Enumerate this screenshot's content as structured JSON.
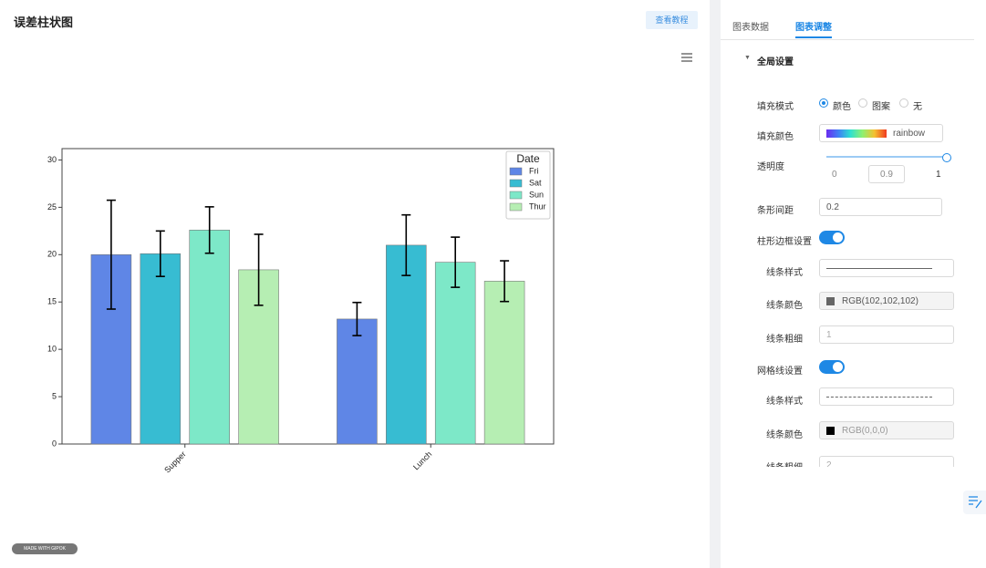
{
  "header": {
    "title": "误差柱状图",
    "button": "查看教程"
  },
  "tabs": [
    "图表数据",
    "图表调整"
  ],
  "section": "全局设置",
  "settings": {
    "fill_mode": {
      "label": "填充模式",
      "options": [
        "颜色",
        "图案",
        "无"
      ]
    },
    "fill_color": {
      "label": "填充颜色",
      "value": "rainbow"
    },
    "opacity": {
      "label": "透明度",
      "min": "0",
      "value": "0.9",
      "max": "1"
    },
    "bar_gap": {
      "label": "条形间距",
      "value": "0.2"
    },
    "border": {
      "label": "柱形边框设置",
      "style_label": "线条样式",
      "color_label": "线条颜色",
      "color": "RGB(102,102,102)",
      "width_label": "线条粗细",
      "width": "1"
    },
    "grid": {
      "label": "网格线设置",
      "style_label": "线条样式",
      "color_label": "线条颜色",
      "color": "RGB(0,0,0)",
      "width_label": "线条粗细",
      "width": "2"
    }
  },
  "watermark": "MADE WITH GIPOK",
  "chart_data": {
    "type": "bar",
    "categories": [
      "Supper",
      "Lunch"
    ],
    "legend_title": "Date",
    "legend_position": "upper right",
    "series": [
      {
        "name": "Fri",
        "color": "#5f86e6",
        "values": [
          20.0,
          13.2
        ],
        "errors": [
          5.75,
          1.75
        ]
      },
      {
        "name": "Sat",
        "color": "#37bcd2",
        "values": [
          20.1,
          21.0
        ],
        "errors": [
          2.4,
          3.2
        ]
      },
      {
        "name": "Sun",
        "color": "#7de8c8",
        "values": [
          22.6,
          19.2
        ],
        "errors": [
          2.45,
          2.65
        ]
      },
      {
        "name": "Thur",
        "color": "#b6eeb3",
        "values": [
          18.4,
          17.2
        ],
        "errors": [
          3.75,
          2.15
        ]
      }
    ],
    "ylim": [
      0,
      31.2
    ],
    "yticks": [
      0,
      5,
      10,
      15,
      20,
      25,
      30
    ],
    "grid": false
  }
}
